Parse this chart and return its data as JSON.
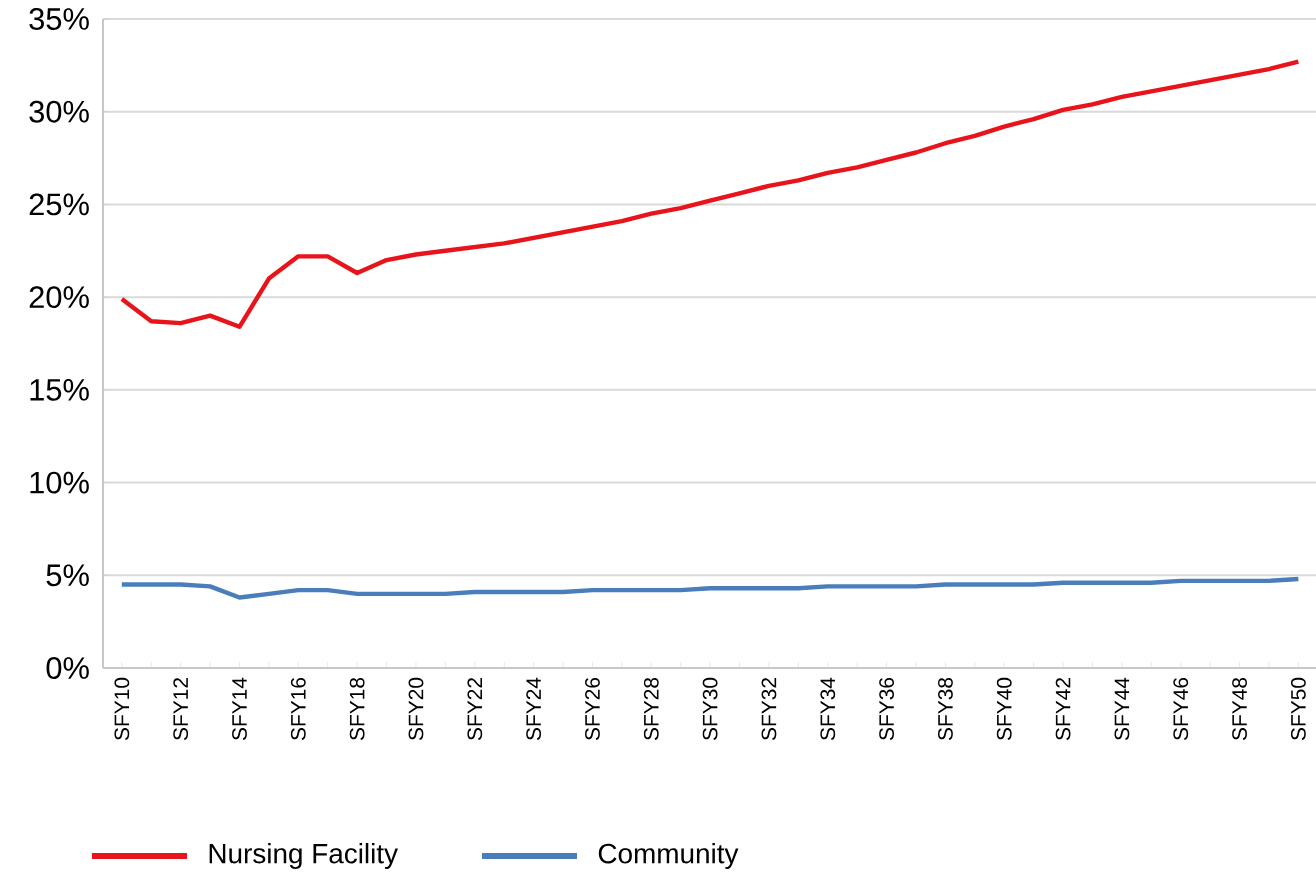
{
  "chart_data": {
    "type": "line",
    "categories": [
      "SFY10",
      null,
      "SFY12",
      null,
      "SFY14",
      null,
      "SFY16",
      null,
      "SFY18",
      null,
      "SFY20",
      null,
      "SFY22",
      null,
      "SFY24",
      null,
      "SFY26",
      null,
      "SFY28",
      null,
      "SFY30",
      null,
      "SFY32",
      null,
      "SFY34",
      null,
      "SFY36",
      null,
      "SFY38",
      null,
      "SFY40",
      null,
      "SFY42",
      null,
      "SFY44",
      null,
      "SFY46",
      null,
      "SFY48",
      null,
      "SFY50"
    ],
    "series": [
      {
        "name": "Nursing Facility",
        "color": "#e8141b",
        "values": [
          19.9,
          18.7,
          18.6,
          19.0,
          18.4,
          21.0,
          22.2,
          22.2,
          21.3,
          22.0,
          22.3,
          22.5,
          22.7,
          22.9,
          23.2,
          23.5,
          23.8,
          24.1,
          24.5,
          24.8,
          25.2,
          25.6,
          26.0,
          26.3,
          26.7,
          27.0,
          27.4,
          27.8,
          28.3,
          28.7,
          29.2,
          29.6,
          30.1,
          30.4,
          30.8,
          31.1,
          31.4,
          31.7,
          32.0,
          32.3,
          32.7
        ]
      },
      {
        "name": "Community",
        "color": "#4a7ebb",
        "values": [
          4.5,
          4.5,
          4.5,
          4.4,
          3.8,
          4.0,
          4.2,
          4.2,
          4.0,
          4.0,
          4.0,
          4.0,
          4.1,
          4.1,
          4.1,
          4.1,
          4.2,
          4.2,
          4.2,
          4.2,
          4.3,
          4.3,
          4.3,
          4.3,
          4.4,
          4.4,
          4.4,
          4.4,
          4.5,
          4.5,
          4.5,
          4.5,
          4.6,
          4.6,
          4.6,
          4.6,
          4.7,
          4.7,
          4.7,
          4.7,
          4.8
        ]
      }
    ],
    "ylim": [
      0,
      35
    ],
    "yticks": [
      {
        "value": 0,
        "label": "0%"
      },
      {
        "value": 5,
        "label": "5%"
      },
      {
        "value": 10,
        "label": "10%"
      },
      {
        "value": 15,
        "label": "15%"
      },
      {
        "value": 20,
        "label": "20%"
      },
      {
        "value": 25,
        "label": "25%"
      },
      {
        "value": 30,
        "label": "30%"
      },
      {
        "value": 35,
        "label": "35%"
      }
    ],
    "grid": "y",
    "legend": "bottom"
  }
}
